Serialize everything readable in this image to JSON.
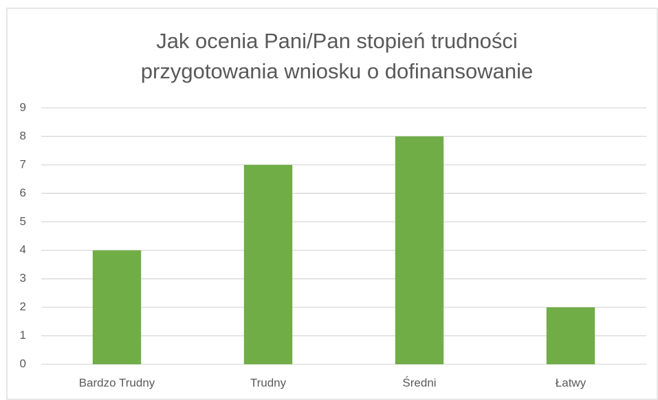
{
  "chart_data": {
    "type": "bar",
    "title": [
      "Jak ocenia Pani/Pan stopień trudności",
      "przygotowania wniosku o dofinansowanie"
    ],
    "categories": [
      "Bardzo Trudny",
      "Trudny",
      "Średni",
      "Łatwy"
    ],
    "values": [
      4,
      7,
      8,
      2
    ],
    "color": "#70ad47",
    "ylim": [
      0,
      9
    ],
    "yticks": [
      0,
      1,
      2,
      3,
      4,
      5,
      6,
      7,
      8,
      9
    ],
    "grid": true
  }
}
